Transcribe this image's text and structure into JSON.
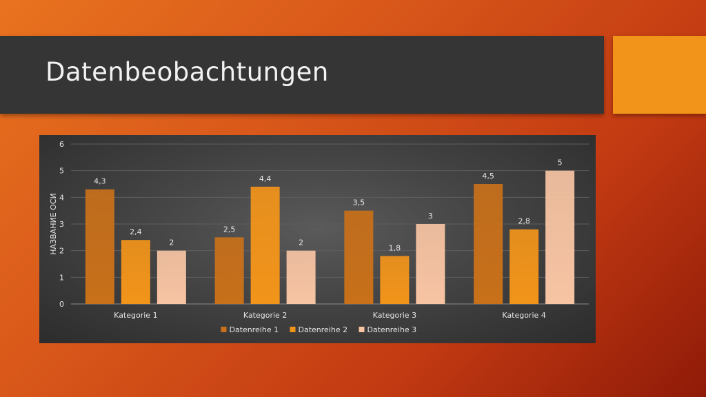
{
  "slide": {
    "title": "Datenbeobachtungen",
    "colors": {
      "title_bar": "#353535",
      "accent": "#f2941a"
    }
  },
  "chart_data": {
    "type": "bar",
    "categories": [
      "Kategorie 1",
      "Kategorie 2",
      "Kategorie 3",
      "Kategorie 4"
    ],
    "series": [
      {
        "name": "Datenreihe 1",
        "values": [
          4.3,
          2.5,
          3.5,
          4.5
        ],
        "labels": [
          "4,3",
          "2,5",
          "3,5",
          "4,5"
        ],
        "color": "#c8701a"
      },
      {
        "name": "Datenreihe 2",
        "values": [
          2.4,
          4.4,
          1.8,
          2.8
        ],
        "labels": [
          "2,4",
          "4,4",
          "1,8",
          "2,8"
        ],
        "color": "#f2941a"
      },
      {
        "name": "Datenreihe 3",
        "values": [
          2,
          2,
          3,
          5
        ],
        "labels": [
          "2",
          "2",
          "3",
          "5"
        ],
        "color": "#f7c4a3"
      }
    ],
    "ylabel": "НАЗВАНИЕ ОСИ",
    "xlabel": "",
    "ylim": [
      0,
      6
    ],
    "yticks": [
      "0",
      "1",
      "2",
      "3",
      "4",
      "5",
      "6"
    ],
    "grid": true,
    "legend": "bottom"
  }
}
